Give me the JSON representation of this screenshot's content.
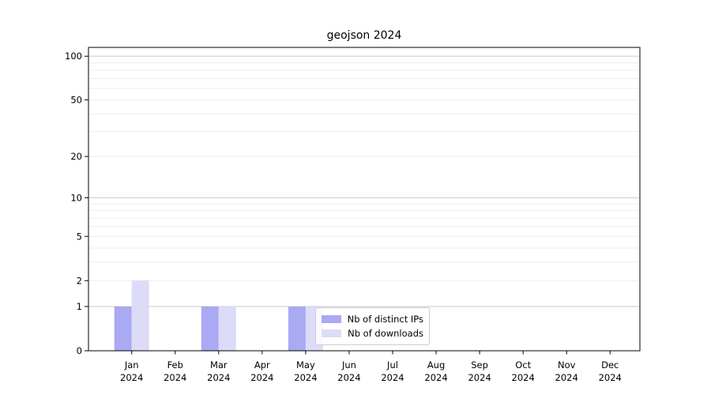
{
  "chart_data": {
    "type": "bar",
    "title": "geojson 2024",
    "categories": [
      "Jan",
      "Feb",
      "Mar",
      "Apr",
      "May",
      "Jun",
      "Jul",
      "Aug",
      "Sep",
      "Oct",
      "Nov",
      "Dec"
    ],
    "year_label": "2024",
    "series": [
      {
        "name": "Nb of distinct IPs",
        "color": "#a9a9f4",
        "values": [
          1,
          0,
          1,
          0,
          1,
          0,
          0,
          0,
          0,
          0,
          0,
          0
        ]
      },
      {
        "name": "Nb of downloads",
        "color": "#dcdcf8",
        "values": [
          2,
          0,
          1,
          0,
          1,
          0,
          0,
          0,
          0,
          0,
          0,
          0
        ]
      }
    ],
    "xlabel": "",
    "ylabel": "",
    "yscale": "log1p",
    "ylim": [
      0,
      115
    ],
    "yticks": [
      0,
      1,
      2,
      5,
      10,
      20,
      50,
      100
    ],
    "grid": {
      "major": [
        1,
        10,
        100
      ],
      "minor": [
        2,
        3,
        4,
        5,
        6,
        7,
        8,
        9,
        20,
        30,
        40,
        50,
        60,
        70,
        80,
        90
      ],
      "major_color": "#c9c9c9",
      "minor_color": "#ededed"
    },
    "legend_position": "inside lower center-right",
    "frame_color": "#000000",
    "background_color": "#ffffff"
  }
}
